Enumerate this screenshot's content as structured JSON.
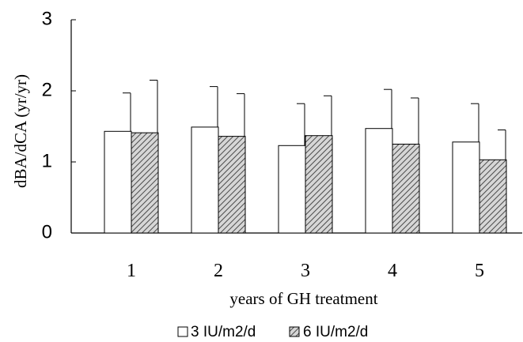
{
  "chart_data": {
    "type": "bar",
    "title": "",
    "xlabel": "years of GH treatment",
    "ylabel": "dBA/dCA (yr/yr)",
    "ylim": [
      0,
      3
    ],
    "yticks": [
      "0",
      "1",
      "2",
      "3"
    ],
    "categories": [
      "1",
      "2",
      "3",
      "4",
      "5"
    ],
    "series": [
      {
        "name": "3 IU/m2/d",
        "fill": "#ffffff",
        "values": [
          1.43,
          1.49,
          1.23,
          1.47,
          1.28
        ],
        "error_upper": [
          0.54,
          0.57,
          0.59,
          0.55,
          0.54
        ]
      },
      {
        "name": "6 IU/m2/d",
        "fill": "hatched",
        "values": [
          1.41,
          1.36,
          1.37,
          1.25,
          1.03
        ],
        "error_upper": [
          0.74,
          0.6,
          0.56,
          0.65,
          0.42
        ]
      }
    ],
    "error_bars": "upper only",
    "legend_position": "bottom-center",
    "grid": false
  },
  "colors": {
    "axis": "#000000",
    "bar_outline": "#000000",
    "hatch": "#555555"
  }
}
